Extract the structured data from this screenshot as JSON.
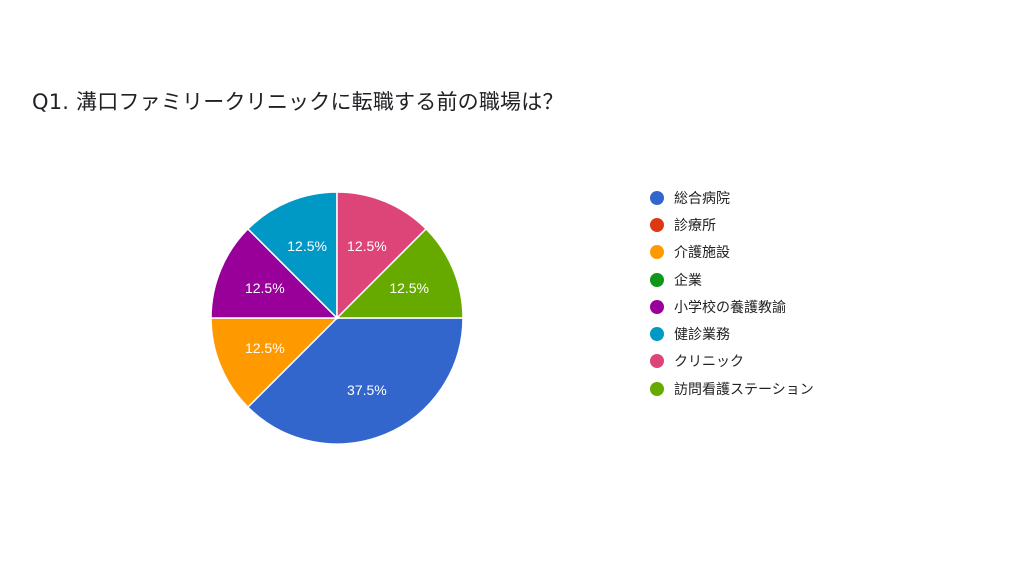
{
  "header": {
    "title": "Q1. 溝口ファミリークリニックに転職する前の職場は？"
  },
  "chart_data": {
    "type": "pie",
    "title": "Q1. 溝口ファミリークリニックに転職する前の職場は？",
    "center": [
      337,
      318
    ],
    "radius": 126,
    "legend_position": "right",
    "slices": [
      {
        "label": "総合病院",
        "value": 37.5,
        "display": "37.5%",
        "color": "#3366cc",
        "start_deg": 90,
        "end_deg": 225
      },
      {
        "label": "診療所",
        "value": 0,
        "display": "",
        "color": "#dc3912",
        "start_deg": 225,
        "end_deg": 225
      },
      {
        "label": "介護施設",
        "value": 12.5,
        "display": "12.5%",
        "color": "#ff9900",
        "start_deg": 225,
        "end_deg": 270
      },
      {
        "label": "企業",
        "value": 0,
        "display": "",
        "color": "#109618",
        "start_deg": 270,
        "end_deg": 270
      },
      {
        "label": "小学校の養護教諭",
        "value": 12.5,
        "display": "12.5%",
        "color": "#990099",
        "start_deg": 270,
        "end_deg": 315
      },
      {
        "label": "健診業務",
        "value": 12.5,
        "display": "12.5%",
        "color": "#0099c6",
        "start_deg": 315,
        "end_deg": 360
      },
      {
        "label": "クリニック",
        "value": 12.5,
        "display": "12.5%",
        "color": "#dd4477",
        "start_deg": 0,
        "end_deg": 45
      },
      {
        "label": "訪問看護ステーション",
        "value": 12.5,
        "display": "12.5%",
        "color": "#66aa00",
        "start_deg": 45,
        "end_deg": 90
      }
    ]
  },
  "legend": {
    "items": [
      {
        "label": "総合病院",
        "color": "#3366cc"
      },
      {
        "label": "診療所",
        "color": "#dc3912"
      },
      {
        "label": "介護施設",
        "color": "#ff9900"
      },
      {
        "label": "企業",
        "color": "#109618"
      },
      {
        "label": "小学校の養護教諭",
        "color": "#990099"
      },
      {
        "label": "健診業務",
        "color": "#0099c6"
      },
      {
        "label": "クリニック",
        "color": "#dd4477"
      },
      {
        "label": "訪問看護ステーション",
        "color": "#66aa00"
      }
    ]
  }
}
